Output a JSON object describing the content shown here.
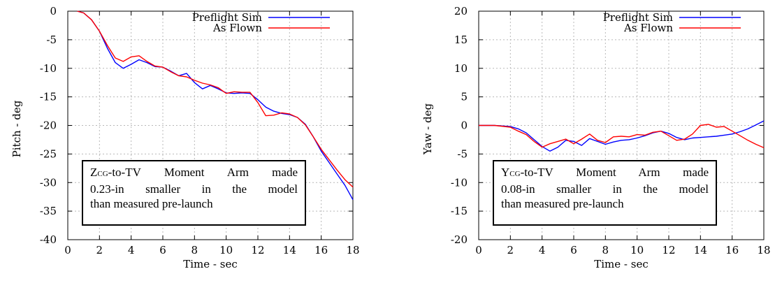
{
  "chart_data": [
    {
      "type": "line",
      "xlabel": "Time - sec",
      "ylabel": "Pitch - deg",
      "xlim": [
        0,
        18
      ],
      "ylim": [
        -40,
        0
      ],
      "xticks": [
        0,
        2,
        4,
        6,
        8,
        10,
        12,
        14,
        16,
        18
      ],
      "yticks": [
        0,
        -5,
        -10,
        -15,
        -20,
        -25,
        -30,
        -35,
        -40
      ],
      "grid": true,
      "legend_position": "top-right",
      "annotation": {
        "sub_main": "Z",
        "sub_script": "CG",
        "line1_rest": "-to-TV Moment Arm made",
        "line2": "0.23-in smaller in the model",
        "line3": "than measured pre-launch"
      },
      "series": [
        {
          "name": "Preflight Sim",
          "color": "#0000ff",
          "x": [
            0.6,
            1.0,
            1.5,
            2.0,
            2.5,
            3.0,
            3.5,
            4.0,
            4.5,
            5.0,
            5.5,
            6.0,
            6.5,
            7.0,
            7.5,
            8.0,
            8.5,
            9.0,
            9.5,
            10.0,
            10.5,
            11.0,
            11.5,
            12.0,
            12.5,
            13.0,
            13.5,
            14.0,
            14.5,
            15.0,
            15.5,
            16.0,
            16.5,
            17.0,
            17.5,
            18.0
          ],
          "y": [
            0,
            -0.3,
            -1.5,
            -3.5,
            -6.5,
            -9.0,
            -10.0,
            -9.3,
            -8.5,
            -9.0,
            -9.7,
            -9.8,
            -10.5,
            -11.3,
            -10.9,
            -12.5,
            -13.6,
            -13.0,
            -13.6,
            -14.3,
            -14.4,
            -14.3,
            -14.4,
            -15.5,
            -16.8,
            -17.5,
            -17.9,
            -18.1,
            -18.6,
            -19.8,
            -22.0,
            -24.5,
            -26.5,
            -28.5,
            -30.5,
            -33.0
          ]
        },
        {
          "name": "As Flown",
          "color": "#ff0000",
          "x": [
            0.6,
            1.0,
            1.5,
            2.0,
            2.5,
            3.0,
            3.5,
            4.0,
            4.5,
            5.0,
            5.5,
            6.0,
            6.5,
            7.0,
            7.5,
            8.0,
            8.5,
            9.0,
            9.5,
            10.0,
            10.5,
            11.0,
            11.5,
            12.0,
            12.5,
            13.0,
            13.5,
            14.0,
            14.5,
            15.0,
            15.5,
            16.0,
            16.5,
            17.0,
            17.5,
            18.0
          ],
          "y": [
            0,
            -0.3,
            -1.5,
            -3.5,
            -6.0,
            -8.2,
            -8.8,
            -8.0,
            -7.8,
            -8.8,
            -9.6,
            -9.8,
            -10.6,
            -11.3,
            -11.5,
            -12.1,
            -12.6,
            -12.9,
            -13.4,
            -14.4,
            -14.1,
            -14.2,
            -14.2,
            -16.0,
            -18.3,
            -18.2,
            -17.8,
            -18.0,
            -18.6,
            -19.9,
            -22.0,
            -24.2,
            -26.0,
            -27.8,
            -29.5,
            -30.8
          ]
        }
      ]
    },
    {
      "type": "line",
      "xlabel": "Time - sec",
      "ylabel": "Yaw - deg",
      "xlim": [
        0,
        18
      ],
      "ylim": [
        -20,
        20
      ],
      "xticks": [
        0,
        2,
        4,
        6,
        8,
        10,
        12,
        14,
        16,
        18
      ],
      "yticks": [
        20,
        15,
        10,
        5,
        0,
        -5,
        -10,
        -15,
        -20
      ],
      "grid": true,
      "legend_position": "top-right",
      "annotation": {
        "sub_main": "Y",
        "sub_script": "CG",
        "line1_rest": "-to-TV Moment Arm made",
        "line2": "0.08-in smaller in the model",
        "line3": "than measured pre-launch"
      },
      "series": [
        {
          "name": "Preflight Sim",
          "color": "#0000ff",
          "x": [
            0,
            1.0,
            2.0,
            2.5,
            3.0,
            3.5,
            4.0,
            4.5,
            5.0,
            5.5,
            6.0,
            6.5,
            7.0,
            7.5,
            8.0,
            8.5,
            9.0,
            9.5,
            10.0,
            10.5,
            11.0,
            11.5,
            12.0,
            12.5,
            13.0,
            13.5,
            14.0,
            14.5,
            15.0,
            15.5,
            16.0,
            16.5,
            17.0,
            17.5,
            18.0
          ],
          "y": [
            0,
            0,
            -0.2,
            -0.6,
            -1.3,
            -2.5,
            -3.7,
            -4.5,
            -3.8,
            -2.6,
            -2.8,
            -3.5,
            -2.3,
            -2.8,
            -3.3,
            -2.9,
            -2.6,
            -2.5,
            -2.2,
            -1.8,
            -1.3,
            -1.0,
            -1.4,
            -2.1,
            -2.5,
            -2.2,
            -2.1,
            -2.0,
            -1.9,
            -1.7,
            -1.5,
            -1.1,
            -0.6,
            0.1,
            0.8
          ]
        },
        {
          "name": "As Flown",
          "color": "#ff0000",
          "x": [
            0,
            1.0,
            2.0,
            2.5,
            3.0,
            3.5,
            4.0,
            4.5,
            5.0,
            5.5,
            6.0,
            6.5,
            7.0,
            7.5,
            8.0,
            8.5,
            9.0,
            9.5,
            10.0,
            10.5,
            11.0,
            11.5,
            12.0,
            12.5,
            13.0,
            13.5,
            14.0,
            14.5,
            15.0,
            15.5,
            16.0,
            16.5,
            17.0,
            17.5,
            18.0
          ],
          "y": [
            0,
            0,
            -0.3,
            -1.0,
            -1.6,
            -2.8,
            -3.8,
            -3.2,
            -2.8,
            -2.4,
            -3.2,
            -2.4,
            -1.5,
            -2.6,
            -3.0,
            -2.0,
            -1.9,
            -2.0,
            -1.6,
            -1.7,
            -1.2,
            -1.0,
            -1.8,
            -2.6,
            -2.4,
            -1.5,
            0.0,
            0.2,
            -0.3,
            -0.2,
            -1.0,
            -1.8,
            -2.6,
            -3.3,
            -3.9
          ]
        }
      ]
    }
  ]
}
